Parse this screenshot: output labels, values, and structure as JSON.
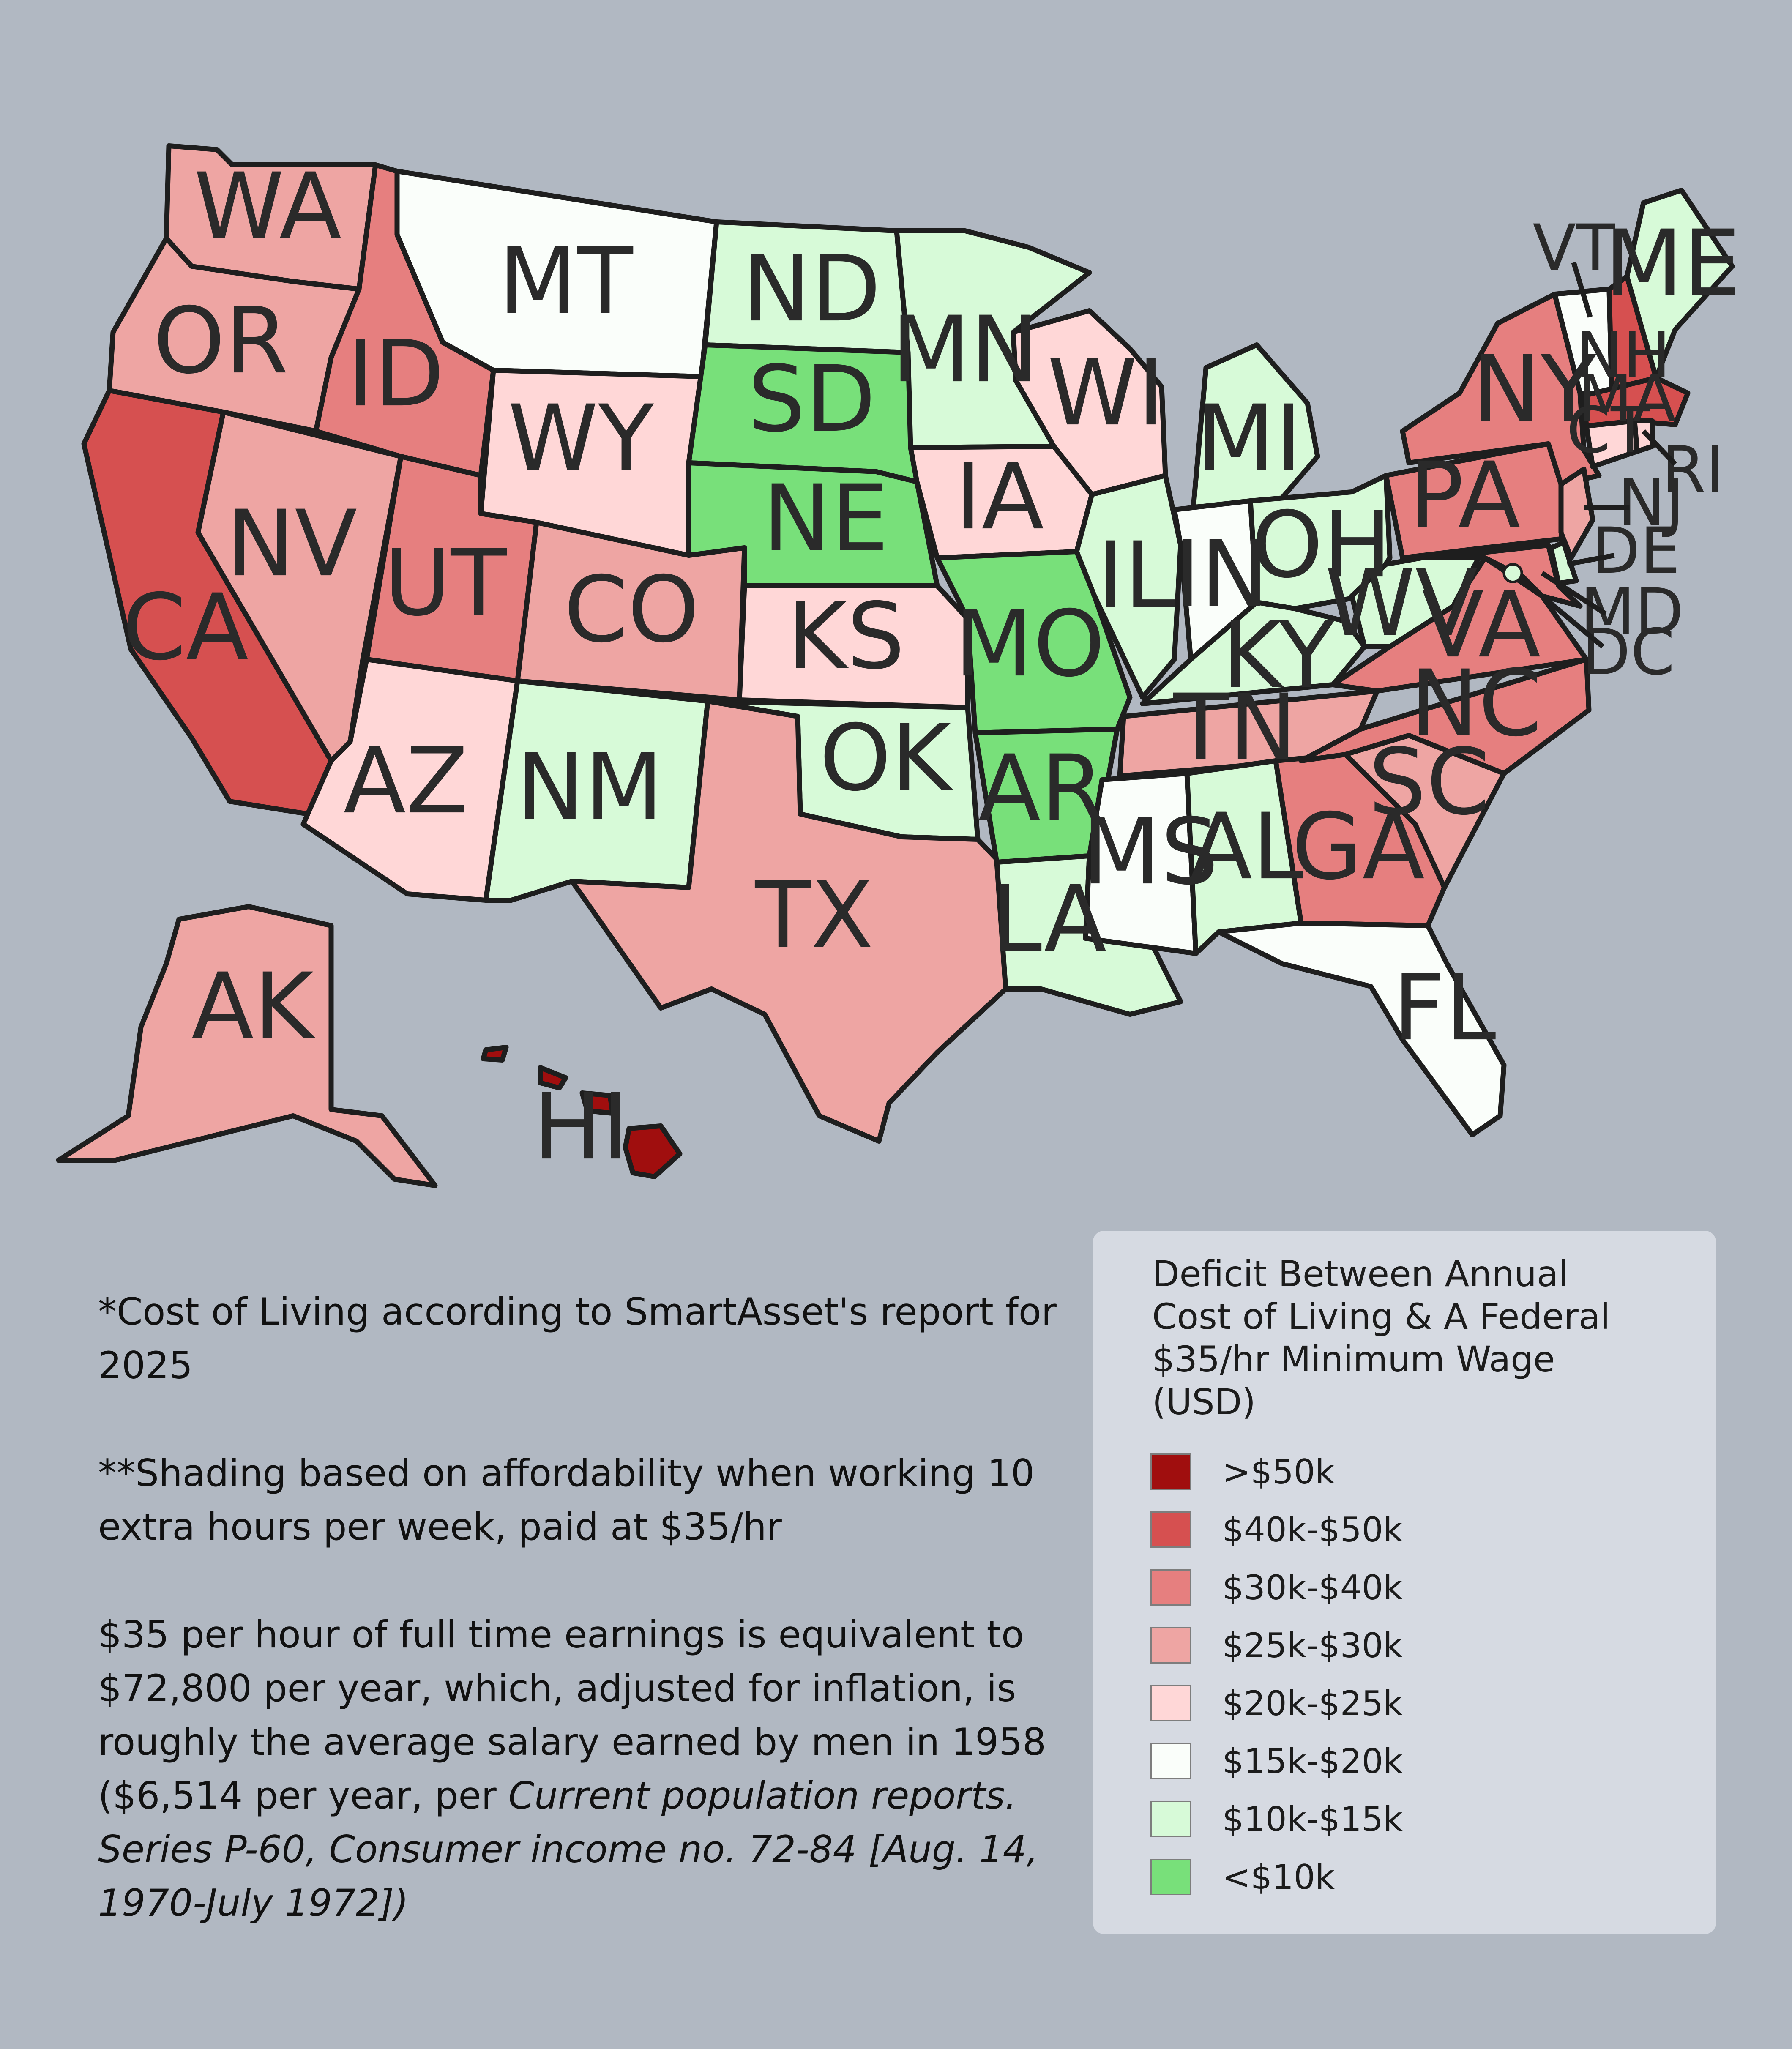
{
  "legend": {
    "title_lines": [
      "Deficit Between Annual",
      "Cost of Living & A Federal",
      "$35/hr Minimum Wage",
      "(USD)"
    ],
    "items": [
      {
        "label": ">$50k",
        "color": "#a00e0e"
      },
      {
        "label": "$40k-$50k",
        "color": "#d65050"
      },
      {
        "label": "$30k-$40k",
        "color": "#e67f7f"
      },
      {
        "label": "$25k-$30k",
        "color": "#eea5a3"
      },
      {
        "label": "$20k-$25k",
        "color": "#ffd7d7"
      },
      {
        "label": "$15k-$20k",
        "color": "#fafefa"
      },
      {
        "label": "$10k-$15k",
        "color": "#d7fad8"
      },
      {
        "label": "<$10k",
        "color": "#78e07a"
      }
    ]
  },
  "notes": {
    "note1": "*Cost of Living according to SmartAsset's report for 2025",
    "note2": "**Shading based on affordability when working 10 extra hours per week, paid at $35/hr",
    "note3_plain": "$35 per hour of full time earnings is equivalent to $72,800 per year, which, adjusted for inflation, is roughly the average salary earned by men in 1958 ($6,514 per year, per ",
    "note3_italic": "Current population reports. Series P-60, Consumer income no. 72-84 [Aug. 14, 1970-July 1972])"
  },
  "states": [
    {
      "abbr": "WA",
      "bracket": "$25k-$30k"
    },
    {
      "abbr": "OR",
      "bracket": "$25k-$30k"
    },
    {
      "abbr": "CA",
      "bracket": "$40k-$50k"
    },
    {
      "abbr": "NV",
      "bracket": "$25k-$30k"
    },
    {
      "abbr": "ID",
      "bracket": "$30k-$40k"
    },
    {
      "abbr": "MT",
      "bracket": "$15k-$20k"
    },
    {
      "abbr": "WY",
      "bracket": "$20k-$25k"
    },
    {
      "abbr": "UT",
      "bracket": "$30k-$40k"
    },
    {
      "abbr": "CO",
      "bracket": "$25k-$30k"
    },
    {
      "abbr": "AZ",
      "bracket": "$20k-$25k"
    },
    {
      "abbr": "NM",
      "bracket": "$10k-$15k"
    },
    {
      "abbr": "ND",
      "bracket": "$10k-$15k"
    },
    {
      "abbr": "SD",
      "bracket": "<$10k"
    },
    {
      "abbr": "NE",
      "bracket": "<$10k"
    },
    {
      "abbr": "KS",
      "bracket": "$20k-$25k"
    },
    {
      "abbr": "OK",
      "bracket": "$10k-$15k"
    },
    {
      "abbr": "TX",
      "bracket": "$25k-$30k"
    },
    {
      "abbr": "MN",
      "bracket": "$10k-$15k"
    },
    {
      "abbr": "IA",
      "bracket": "$20k-$25k"
    },
    {
      "abbr": "MO",
      "bracket": "<$10k"
    },
    {
      "abbr": "AR",
      "bracket": "<$10k"
    },
    {
      "abbr": "LA",
      "bracket": "$10k-$15k"
    },
    {
      "abbr": "WI",
      "bracket": "$20k-$25k"
    },
    {
      "abbr": "IL",
      "bracket": "$10k-$15k"
    },
    {
      "abbr": "MI",
      "bracket": "$10k-$15k"
    },
    {
      "abbr": "IN",
      "bracket": "$15k-$20k"
    },
    {
      "abbr": "OH",
      "bracket": "$10k-$15k"
    },
    {
      "abbr": "KY",
      "bracket": "$10k-$15k"
    },
    {
      "abbr": "TN",
      "bracket": "$25k-$30k"
    },
    {
      "abbr": "MS",
      "bracket": "$15k-$20k"
    },
    {
      "abbr": "AL",
      "bracket": "$10k-$15k"
    },
    {
      "abbr": "GA",
      "bracket": "$30k-$40k"
    },
    {
      "abbr": "FL",
      "bracket": "$15k-$20k"
    },
    {
      "abbr": "SC",
      "bracket": "$25k-$30k"
    },
    {
      "abbr": "NC",
      "bracket": "$30k-$40k"
    },
    {
      "abbr": "VA",
      "bracket": "$30k-$40k"
    },
    {
      "abbr": "WV",
      "bracket": "$10k-$15k"
    },
    {
      "abbr": "PA",
      "bracket": "$30k-$40k"
    },
    {
      "abbr": "NY",
      "bracket": "$30k-$40k"
    },
    {
      "abbr": "VT",
      "bracket": "$15k-$20k"
    },
    {
      "abbr": "NH",
      "bracket": "$40k-$50k"
    },
    {
      "abbr": "ME",
      "bracket": "$10k-$15k"
    },
    {
      "abbr": "MA",
      "bracket": "$40k-$50k"
    },
    {
      "abbr": "CT",
      "bracket": "$20k-$25k"
    },
    {
      "abbr": "RI",
      "bracket": "$20k-$25k"
    },
    {
      "abbr": "NJ",
      "bracket": "$25k-$30k"
    },
    {
      "abbr": "DE",
      "bracket": "$10k-$15k"
    },
    {
      "abbr": "MD",
      "bracket": "$30k-$40k"
    },
    {
      "abbr": "DC",
      "bracket": "$10k-$15k"
    },
    {
      "abbr": "AK",
      "bracket": "$25k-$30k"
    },
    {
      "abbr": "HI",
      "bracket": ">$50k"
    }
  ]
}
